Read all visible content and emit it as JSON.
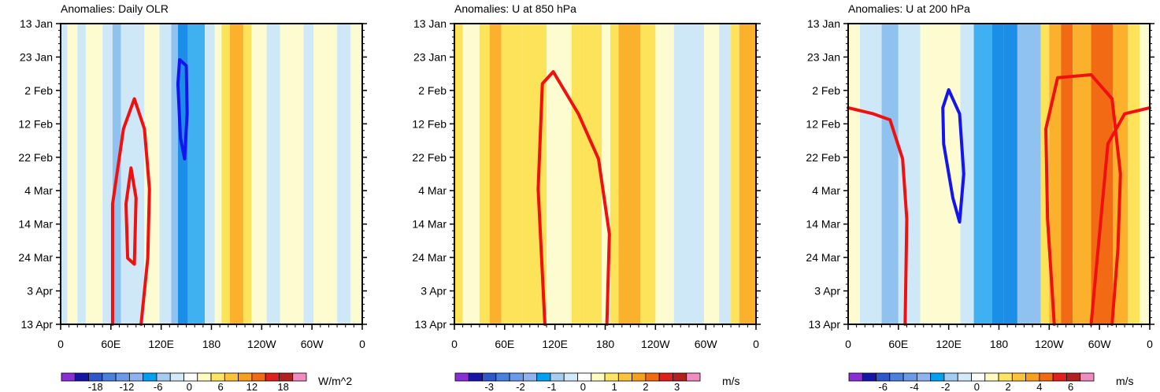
{
  "chart_data": [
    {
      "type": "heatmap",
      "title": "Anomalies: Daily OLR",
      "ylabels": [
        "13 Jan",
        "23 Jan",
        "2 Feb",
        "12 Feb",
        "22 Feb",
        "4 Mar",
        "14 Mar",
        "24 Mar",
        "3 Apr",
        "13 Apr"
      ],
      "xlabels": [
        "0",
        "60E",
        "120E",
        "180",
        "120W",
        "60W",
        "0"
      ],
      "xlim": [
        0,
        360
      ],
      "colorbar": {
        "labels": [
          "-18",
          "-12",
          "-6",
          "0",
          "6",
          "12",
          "18"
        ],
        "units": "W/m^2"
      },
      "columns": [
        {
          "x": [
            0,
            8
          ],
          "v": -1
        },
        {
          "x": [
            8,
            20
          ],
          "v": 0
        },
        {
          "x": [
            20,
            30
          ],
          "v": -1
        },
        {
          "x": [
            30,
            50
          ],
          "v": 0
        },
        {
          "x": [
            50,
            62
          ],
          "v": -1
        },
        {
          "x": [
            62,
            72
          ],
          "v": -2
        },
        {
          "x": [
            72,
            100
          ],
          "v": -1
        },
        {
          "x": [
            100,
            118
          ],
          "v": 0
        },
        {
          "x": [
            118,
            132
          ],
          "v": -1
        },
        {
          "x": [
            132,
            140
          ],
          "v": -2
        },
        {
          "x": [
            140,
            152
          ],
          "v": -4
        },
        {
          "x": [
            152,
            172
          ],
          "v": -3
        },
        {
          "x": [
            172,
            184
          ],
          "v": -1
        },
        {
          "x": [
            184,
            192
          ],
          "v": 0
        },
        {
          "x": [
            192,
            202
          ],
          "v": 1
        },
        {
          "x": [
            202,
            218
          ],
          "v": 2
        },
        {
          "x": [
            218,
            228
          ],
          "v": 1
        },
        {
          "x": [
            228,
            246
          ],
          "v": 0
        },
        {
          "x": [
            246,
            262
          ],
          "v": -1
        },
        {
          "x": [
            262,
            290
          ],
          "v": 0
        },
        {
          "x": [
            290,
            302
          ],
          "v": -1
        },
        {
          "x": [
            302,
            330
          ],
          "v": 0
        },
        {
          "x": [
            330,
            346
          ],
          "v": -1
        },
        {
          "x": [
            346,
            360
          ],
          "v": 0
        }
      ],
      "contours": [
        {
          "color": "red",
          "points": [
            [
              62,
              100
            ],
            [
              62,
              60
            ],
            [
              75,
              35
            ],
            [
              88,
              25
            ],
            [
              100,
              35
            ],
            [
              106,
              55
            ],
            [
              104,
              78
            ],
            [
              96,
              100
            ]
          ]
        },
        {
          "color": "red",
          "points": [
            [
              80,
              78
            ],
            [
              78,
              60
            ],
            [
              84,
              48
            ],
            [
              90,
              58
            ],
            [
              88,
              80
            ]
          ]
        },
        {
          "color": "blue",
          "points": [
            [
              140,
              20
            ],
            [
              142,
              12
            ],
            [
              150,
              14
            ],
            [
              151,
              30
            ],
            [
              148,
              45
            ],
            [
              143,
              38
            ]
          ]
        }
      ]
    },
    {
      "type": "heatmap",
      "title": "Anomalies: U at 850 hPa",
      "ylabels": [
        "13 Jan",
        "23 Jan",
        "2 Feb",
        "12 Feb",
        "22 Feb",
        "4 Mar",
        "14 Mar",
        "24 Mar",
        "3 Apr",
        "13 Apr"
      ],
      "xlabels": [
        "0",
        "60E",
        "120E",
        "180",
        "120W",
        "60W",
        "0"
      ],
      "xlim": [
        0,
        360
      ],
      "colorbar": {
        "labels": [
          "-3",
          "-2",
          "-1",
          "0",
          "1",
          "2",
          "3"
        ],
        "units": "m/s"
      },
      "columns": [
        {
          "x": [
            0,
            10
          ],
          "v": 1
        },
        {
          "x": [
            10,
            30
          ],
          "v": 0
        },
        {
          "x": [
            30,
            42
          ],
          "v": 1
        },
        {
          "x": [
            42,
            56
          ],
          "v": 2
        },
        {
          "x": [
            56,
            80
          ],
          "v": 1
        },
        {
          "x": [
            80,
            110
          ],
          "v": 1
        },
        {
          "x": [
            110,
            140
          ],
          "v": 0
        },
        {
          "x": [
            140,
            155
          ],
          "v": 1
        },
        {
          "x": [
            155,
            176
          ],
          "v": 1
        },
        {
          "x": [
            176,
            186
          ],
          "v": 0
        },
        {
          "x": [
            186,
            196
          ],
          "v": 1
        },
        {
          "x": [
            196,
            222
          ],
          "v": 2
        },
        {
          "x": [
            222,
            240
          ],
          "v": 1
        },
        {
          "x": [
            240,
            262
          ],
          "v": 0
        },
        {
          "x": [
            262,
            280
          ],
          "v": -1
        },
        {
          "x": [
            280,
            298
          ],
          "v": -1
        },
        {
          "x": [
            298,
            316
          ],
          "v": 0
        },
        {
          "x": [
            316,
            330
          ],
          "v": -1
        },
        {
          "x": [
            330,
            340
          ],
          "v": 1
        },
        {
          "x": [
            340,
            360
          ],
          "v": 2
        }
      ],
      "contours": [
        {
          "color": "red",
          "points": [
            [
              108,
              100
            ],
            [
              100,
              55
            ],
            [
              105,
              20
            ],
            [
              118,
              16
            ],
            [
              148,
              30
            ],
            [
              172,
              45
            ],
            [
              185,
              70
            ],
            [
              182,
              100
            ]
          ]
        }
      ]
    },
    {
      "type": "heatmap",
      "title": "Anomalies: U at 200 hPa",
      "ylabels": [
        "13 Jan",
        "23 Jan",
        "2 Feb",
        "12 Feb",
        "22 Feb",
        "4 Mar",
        "14 Mar",
        "24 Mar",
        "3 Apr",
        "13 Apr"
      ],
      "xlabels": [
        "0",
        "60E",
        "120E",
        "180",
        "120W",
        "60W",
        "0"
      ],
      "xlim": [
        0,
        360
      ],
      "colorbar": {
        "labels": [
          "-6",
          "-4",
          "-2",
          "0",
          "2",
          "4",
          "6"
        ],
        "units": "m/s"
      },
      "columns": [
        {
          "x": [
            0,
            14
          ],
          "v": 0
        },
        {
          "x": [
            14,
            40
          ],
          "v": -1
        },
        {
          "x": [
            40,
            60
          ],
          "v": -2
        },
        {
          "x": [
            60,
            86
          ],
          "v": -1
        },
        {
          "x": [
            86,
            108
          ],
          "v": 0
        },
        {
          "x": [
            108,
            134
          ],
          "v": 0
        },
        {
          "x": [
            134,
            150
          ],
          "v": -1
        },
        {
          "x": [
            150,
            172
          ],
          "v": -3
        },
        {
          "x": [
            172,
            186
          ],
          "v": -4
        },
        {
          "x": [
            186,
            202
          ],
          "v": -4
        },
        {
          "x": [
            202,
            230
          ],
          "v": -2
        },
        {
          "x": [
            230,
            240
          ],
          "v": 1
        },
        {
          "x": [
            240,
            254
          ],
          "v": 2
        },
        {
          "x": [
            254,
            268
          ],
          "v": 3
        },
        {
          "x": [
            268,
            290
          ],
          "v": 2
        },
        {
          "x": [
            290,
            316
          ],
          "v": 3
        },
        {
          "x": [
            316,
            334
          ],
          "v": 2
        },
        {
          "x": [
            334,
            348
          ],
          "v": 1
        },
        {
          "x": [
            348,
            360
          ],
          "v": 0
        }
      ],
      "contours": [
        {
          "color": "red",
          "points": [
            [
              0,
              28
            ],
            [
              30,
              30
            ],
            [
              50,
              32
            ],
            [
              65,
              45
            ],
            [
              70,
              65
            ],
            [
              68,
              100
            ]
          ]
        },
        {
          "color": "blue",
          "points": [
            [
              120,
              22
            ],
            [
              133,
              30
            ],
            [
              138,
              50
            ],
            [
              133,
              66
            ],
            [
              125,
              58
            ],
            [
              114,
              40
            ],
            [
              113,
              28
            ]
          ]
        },
        {
          "color": "red",
          "points": [
            [
              246,
              100
            ],
            [
              238,
              65
            ],
            [
              236,
              35
            ],
            [
              250,
              18
            ],
            [
              290,
              17
            ],
            [
              315,
              25
            ],
            [
              325,
              50
            ],
            [
              322,
              75
            ],
            [
              315,
              100
            ]
          ]
        },
        {
          "color": "red",
          "points": [
            [
              290,
              100
            ],
            [
              300,
              70
            ],
            [
              310,
              40
            ],
            [
              330,
              30
            ],
            [
              360,
              28
            ]
          ]
        }
      ]
    }
  ]
}
